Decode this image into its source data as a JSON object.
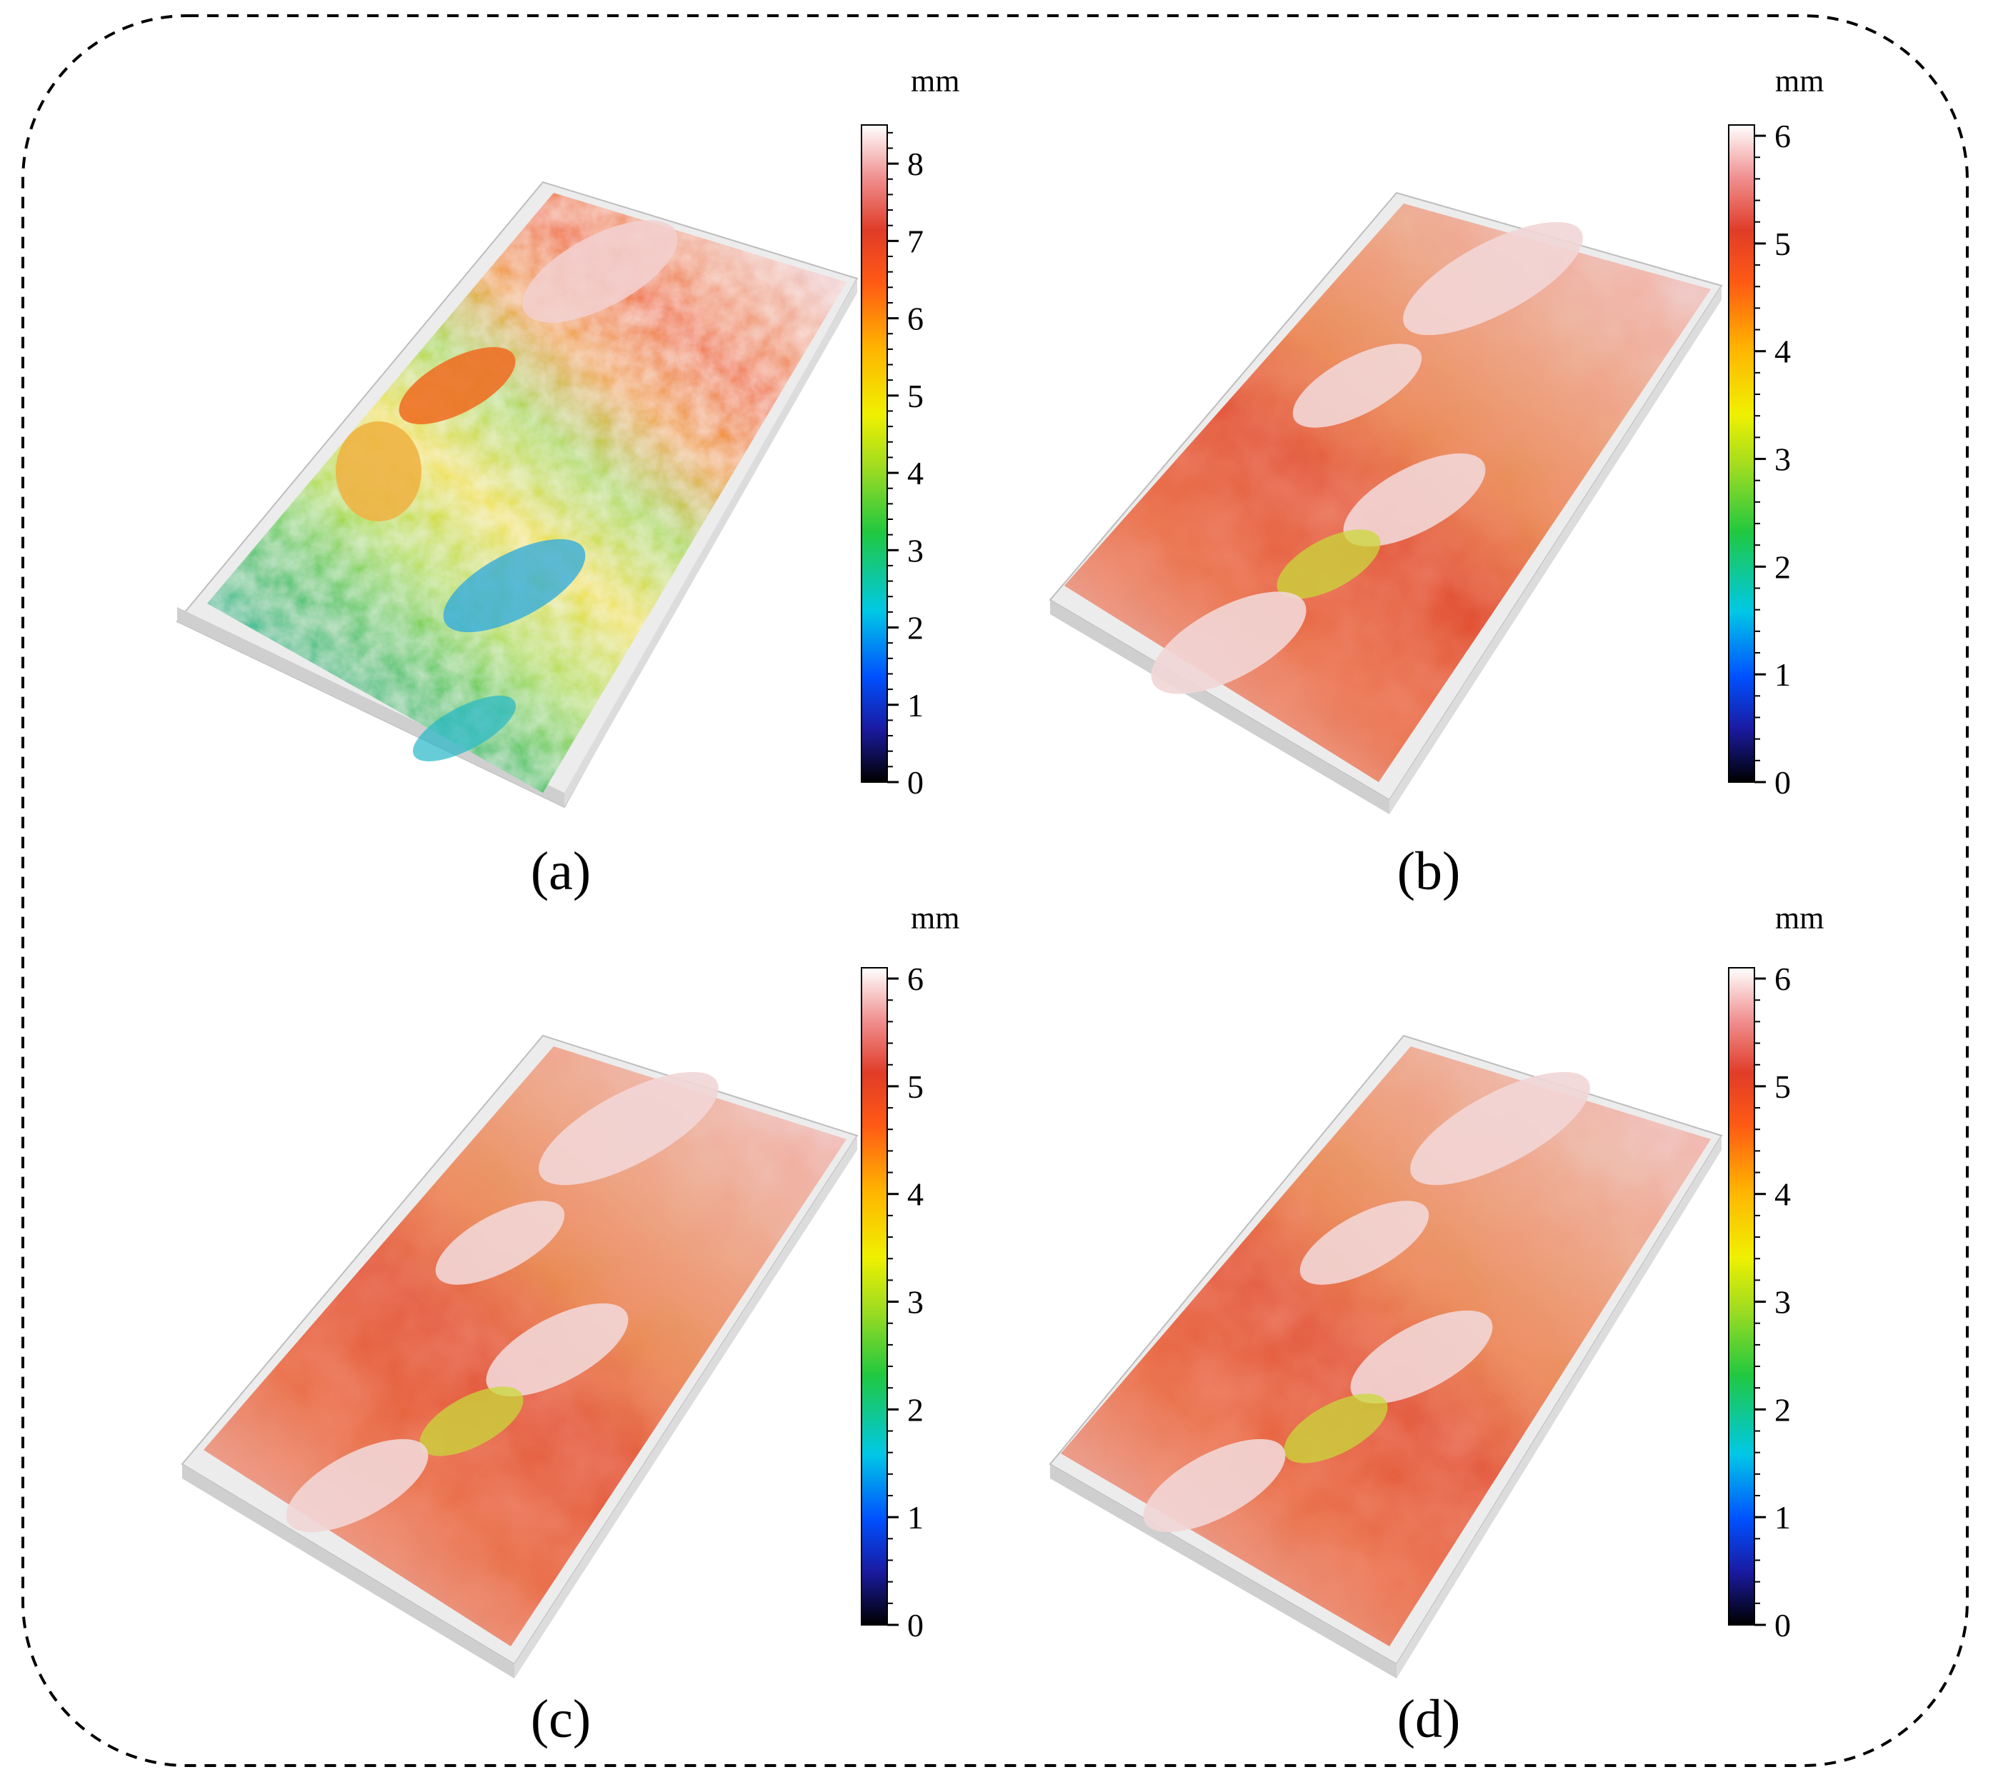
{
  "figure": {
    "border_style": "dashed",
    "panels": [
      {
        "id": "a",
        "label": "(a)",
        "colorbar": {
          "unit": "mm",
          "min": 0,
          "max": 8.5,
          "ticks": [
            "0",
            "1",
            "2",
            "3",
            "4",
            "5",
            "6",
            "7",
            "8"
          ]
        },
        "surface_colors": {
          "overall": "rainbow",
          "dominant": [
            "#2db84a",
            "#f0d22a",
            "#f07820"
          ]
        }
      },
      {
        "id": "b",
        "label": "(b)",
        "colorbar": {
          "unit": "mm",
          "min": 0,
          "max": 6.1,
          "ticks": [
            "0",
            "1",
            "2",
            "3",
            "4",
            "5",
            "6"
          ]
        },
        "surface_colors": {
          "overall": "white-red",
          "dominant": [
            "#e8c8c8",
            "#e84a2a",
            "#c8d83a"
          ]
        }
      },
      {
        "id": "c",
        "label": "(c)",
        "colorbar": {
          "unit": "mm",
          "min": 0,
          "max": 6.1,
          "ticks": [
            "0",
            "1",
            "2",
            "3",
            "4",
            "5",
            "6"
          ]
        },
        "surface_colors": {
          "overall": "white-red",
          "dominant": [
            "#e8c8c8",
            "#e84a2a",
            "#c8d83a"
          ]
        }
      },
      {
        "id": "d",
        "label": "(d)",
        "colorbar": {
          "unit": "mm",
          "min": 0,
          "max": 6.1,
          "ticks": [
            "0",
            "1",
            "2",
            "3",
            "4",
            "5",
            "6"
          ]
        },
        "surface_colors": {
          "overall": "white-red",
          "dominant": [
            "#e8c8c8",
            "#e84a2a",
            "#c8d83a"
          ]
        }
      }
    ]
  },
  "colormap": [
    "#000000",
    "#1a1aa0",
    "#0050ff",
    "#00c8e6",
    "#20c840",
    "#a0dc20",
    "#f0f000",
    "#ffb400",
    "#ff5a14",
    "#e03c28",
    "#f09090",
    "#ffffff"
  ]
}
